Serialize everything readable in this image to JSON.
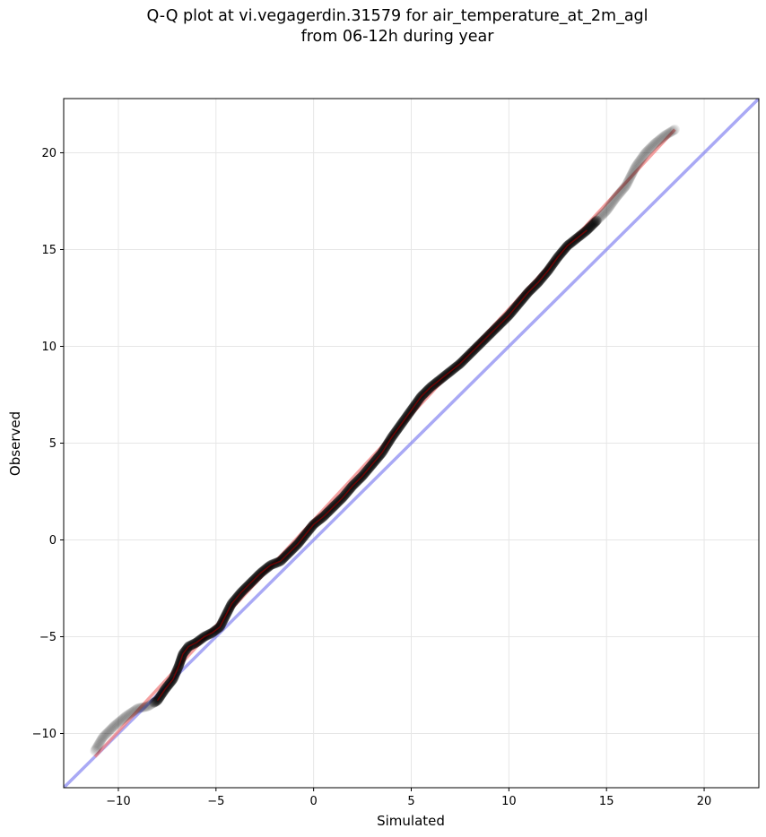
{
  "chart_data": {
    "type": "scatter",
    "title_line1": "Q-Q plot at vi.vegagerdin.31579 for air_temperature_at_2m_agl",
    "title_line2": "from 06-12h during year",
    "xlabel": "Simulated",
    "ylabel": "Observed",
    "xlim": [
      -12.8,
      22.8
    ],
    "ylim": [
      -12.8,
      22.8
    ],
    "xticks": [
      -10,
      -5,
      0,
      5,
      10,
      15,
      20
    ],
    "yticks": [
      -10,
      -5,
      0,
      5,
      10,
      15,
      20
    ],
    "xtick_labels": [
      "−10",
      "−5",
      "0",
      "5",
      "10",
      "15",
      "20"
    ],
    "ytick_labels": [
      "−10",
      "−5",
      "0",
      "5",
      "10",
      "15",
      "20"
    ],
    "grid": true,
    "reference_line": {
      "color": "#7b7bf0",
      "from": [
        -12.8,
        -12.8
      ],
      "to": [
        22.8,
        22.8
      ]
    },
    "fit_line": {
      "color": "#f08080",
      "from": [
        -11.2,
        -11.2
      ],
      "to": [
        18.5,
        21.2
      ]
    },
    "quantile_curve": [
      [
        -11.2,
        -10.9
      ],
      [
        -10.8,
        -10.2
      ],
      [
        -10.2,
        -9.6
      ],
      [
        -9.6,
        -9.1
      ],
      [
        -9.0,
        -8.7
      ],
      [
        -8.5,
        -8.6
      ],
      [
        -8.0,
        -8.3
      ],
      [
        -7.6,
        -7.7
      ],
      [
        -7.2,
        -7.2
      ],
      [
        -6.9,
        -6.5
      ],
      [
        -6.7,
        -5.9
      ],
      [
        -6.4,
        -5.5
      ],
      [
        -6.0,
        -5.3
      ],
      [
        -5.6,
        -5.0
      ],
      [
        -5.2,
        -4.8
      ],
      [
        -4.8,
        -4.5
      ],
      [
        -4.5,
        -3.9
      ],
      [
        -4.2,
        -3.3
      ],
      [
        -3.7,
        -2.7
      ],
      [
        -3.2,
        -2.2
      ],
      [
        -2.7,
        -1.7
      ],
      [
        -2.2,
        -1.3
      ],
      [
        -1.7,
        -1.1
      ],
      [
        -1.3,
        -0.7
      ],
      [
        -0.8,
        -0.2
      ],
      [
        -0.4,
        0.3
      ],
      [
        0.0,
        0.8
      ],
      [
        0.5,
        1.2
      ],
      [
        1.0,
        1.7
      ],
      [
        1.5,
        2.2
      ],
      [
        2.0,
        2.8
      ],
      [
        2.5,
        3.3
      ],
      [
        3.0,
        3.9
      ],
      [
        3.5,
        4.5
      ],
      [
        4.0,
        5.3
      ],
      [
        4.5,
        6.0
      ],
      [
        5.0,
        6.7
      ],
      [
        5.5,
        7.4
      ],
      [
        6.0,
        7.9
      ],
      [
        6.5,
        8.3
      ],
      [
        7.0,
        8.7
      ],
      [
        7.5,
        9.1
      ],
      [
        8.0,
        9.6
      ],
      [
        8.5,
        10.1
      ],
      [
        9.0,
        10.6
      ],
      [
        9.5,
        11.1
      ],
      [
        10.0,
        11.6
      ],
      [
        10.5,
        12.2
      ],
      [
        11.0,
        12.8
      ],
      [
        11.5,
        13.3
      ],
      [
        12.0,
        13.9
      ],
      [
        12.5,
        14.6
      ],
      [
        13.0,
        15.2
      ],
      [
        13.5,
        15.6
      ],
      [
        14.0,
        16.0
      ],
      [
        14.5,
        16.5
      ],
      [
        15.0,
        17.0
      ],
      [
        15.5,
        17.7
      ],
      [
        16.0,
        18.3
      ],
      [
        16.5,
        19.3
      ],
      [
        17.0,
        20.0
      ],
      [
        17.5,
        20.5
      ],
      [
        18.0,
        20.9
      ],
      [
        18.5,
        21.2
      ]
    ]
  }
}
